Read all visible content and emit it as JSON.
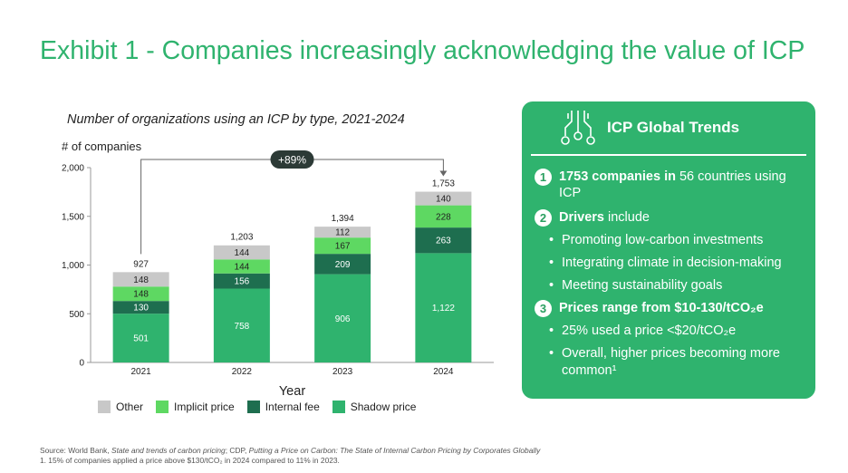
{
  "title": "Exhibit 1 - Companies increasingly acknowledging the value of ICP",
  "colors": {
    "accent": "#2fb36e",
    "other": "#c8c8c8",
    "implicit": "#5ed862",
    "internal": "#1e6e4f",
    "shadow": "#2fb36e"
  },
  "chart_data": {
    "type": "bar",
    "stacked": true,
    "title": "Number of organizations using an ICP by type, 2021-2024",
    "ylabel": "# of companies",
    "xlabel": "Year",
    "categories": [
      "2021",
      "2022",
      "2023",
      "2024"
    ],
    "ylim": [
      0,
      2000
    ],
    "yticks": [
      "0",
      "500",
      "1,000",
      "1,500",
      "2,000"
    ],
    "series": [
      {
        "name": "Shadow price",
        "key": "shadow",
        "values": [
          501,
          758,
          906,
          1122
        ],
        "labels": [
          "501",
          "758",
          "906",
          "1,122"
        ]
      },
      {
        "name": "Internal fee",
        "key": "internal",
        "values": [
          130,
          156,
          209,
          263
        ],
        "labels": [
          "130",
          "156",
          "209",
          "263"
        ]
      },
      {
        "name": "Implicit price",
        "key": "implicit",
        "values": [
          148,
          144,
          167,
          228
        ],
        "labels": [
          "148",
          "144",
          "167",
          "228"
        ]
      },
      {
        "name": "Other",
        "key": "other",
        "values": [
          148,
          144,
          112,
          140
        ],
        "labels": [
          "148",
          "144",
          "112",
          "140"
        ]
      }
    ],
    "totals": [
      927,
      1203,
      1394,
      1753
    ],
    "total_labels": [
      "927",
      "1,203",
      "1,394",
      "1,753"
    ],
    "growth_label": "+89%",
    "legend": [
      "Other",
      "Implicit price",
      "Internal fee",
      "Shadow price"
    ]
  },
  "panel": {
    "title": "ICP Global Trends",
    "n1": "1",
    "p1_bold": "1753 companies in",
    "p1_rest": " 56 countries using ICP",
    "n2": "2",
    "p2_bold": "Drivers",
    "p2_rest": " include",
    "b1": "Promoting low-carbon investments",
    "b2": "Integrating climate in decision-making",
    "b3": "Meeting sustainability goals",
    "n3": "3",
    "p3_bold": "Prices range from $10-130/tCO₂e",
    "b4": "25% used a price <$20/tCO₂e",
    "b5": "Overall, higher prices becoming more common¹",
    "bullet_char": "•"
  },
  "footer": {
    "source_prefix": "Source: World Bank, ",
    "source_it1": "State and trends of carbon pricing",
    "source_mid": "; CDP, ",
    "source_it2": "Putting a Price on Carbon: The State of Internal Carbon Pricing by Corporates Globally",
    "note": "1. 15% of companies applied a price above $130/tCO₂ in 2024 compared to 11% in 2023."
  }
}
